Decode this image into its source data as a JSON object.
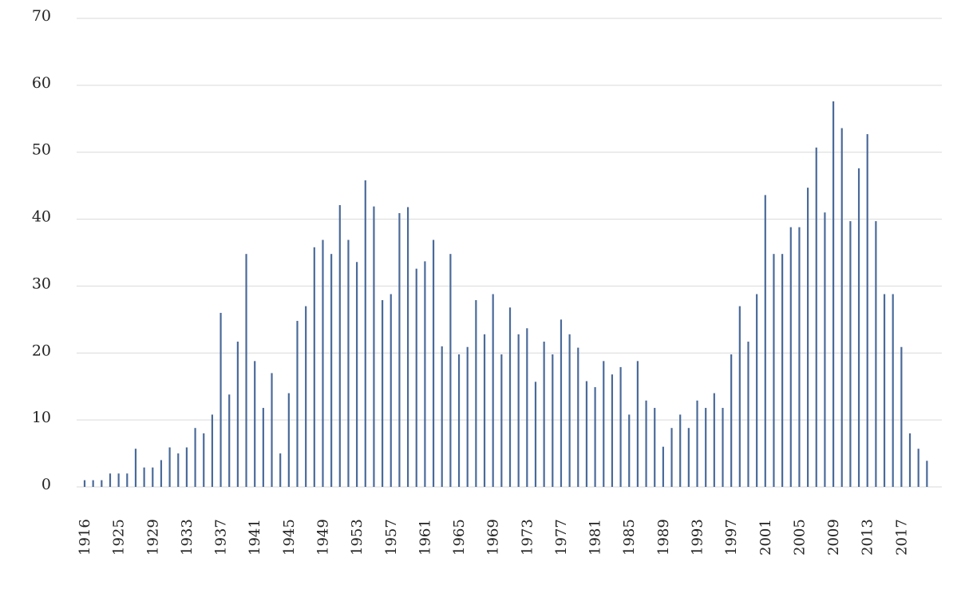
{
  "chart_data": {
    "type": "bar",
    "title": "",
    "xlabel": "",
    "ylabel": "",
    "ylim": [
      0,
      70
    ],
    "yticks": [
      0,
      10,
      20,
      30,
      40,
      50,
      60,
      70
    ],
    "grid": true,
    "legend": "none",
    "bar_color": "#4a6a9a",
    "x": [
      1916,
      1922,
      1923,
      1924,
      1925,
      1926,
      1927,
      1928,
      1929,
      1930,
      1931,
      1932,
      1933,
      1934,
      1935,
      1936,
      1937,
      1938,
      1939,
      1940,
      1941,
      1942,
      1943,
      1944,
      1945,
      1946,
      1947,
      1948,
      1949,
      1950,
      1951,
      1952,
      1953,
      1954,
      1955,
      1956,
      1957,
      1958,
      1959,
      1960,
      1961,
      1962,
      1963,
      1964,
      1965,
      1966,
      1967,
      1968,
      1969,
      1970,
      1971,
      1972,
      1973,
      1974,
      1975,
      1976,
      1977,
      1978,
      1979,
      1980,
      1981,
      1982,
      1983,
      1984,
      1985,
      1986,
      1987,
      1988,
      1989,
      1990,
      1991,
      1992,
      1993,
      1994,
      1995,
      1996,
      1997,
      1998,
      1999,
      2000,
      2001,
      2002,
      2003,
      2004,
      2005,
      2006,
      2007,
      2008,
      2009,
      2010,
      2011,
      2012,
      2013,
      2014,
      2015,
      2016,
      2017,
      2018,
      2019,
      2020
    ],
    "values": [
      1,
      1,
      1,
      2,
      2,
      2,
      5.7,
      2.9,
      2.9,
      4,
      5.9,
      5,
      5.9,
      8.8,
      8,
      10.8,
      26,
      13.8,
      21.7,
      34.8,
      18.8,
      11.8,
      17,
      5,
      14,
      24.8,
      27,
      35.8,
      36.9,
      34.8,
      42.1,
      36.9,
      33.6,
      45.8,
      41.9,
      27.9,
      28.8,
      40.9,
      41.8,
      32.6,
      33.7,
      36.9,
      21,
      34.8,
      19.8,
      20.9,
      27.9,
      22.8,
      28.8,
      19.8,
      26.8,
      22.8,
      23.7,
      15.7,
      21.7,
      19.8,
      25,
      22.8,
      20.8,
      15.8,
      14.9,
      18.8,
      16.8,
      17.9,
      10.8,
      18.8,
      12.9,
      11.8,
      6,
      8.8,
      10.8,
      8.8,
      12.9,
      11.8,
      14,
      11.8,
      19.8,
      27,
      21.7,
      28.8,
      43.6,
      34.8,
      34.8,
      38.8,
      38.8,
      44.7,
      50.7,
      41,
      57.6,
      53.6,
      39.7,
      47.6,
      52.7,
      39.7,
      28.8,
      28.8,
      20.9,
      8,
      5.7,
      3.9
    ],
    "tick_labels": [
      "1916",
      "1925",
      "1929",
      "1933",
      "1937",
      "1941",
      "1945",
      "1949",
      "1953",
      "1957",
      "1961",
      "1965",
      "1969",
      "1973",
      "1977",
      "1981",
      "1985",
      "1989",
      "1993",
      "1997",
      "2001",
      "2005",
      "2009",
      "2013",
      "2017"
    ]
  }
}
